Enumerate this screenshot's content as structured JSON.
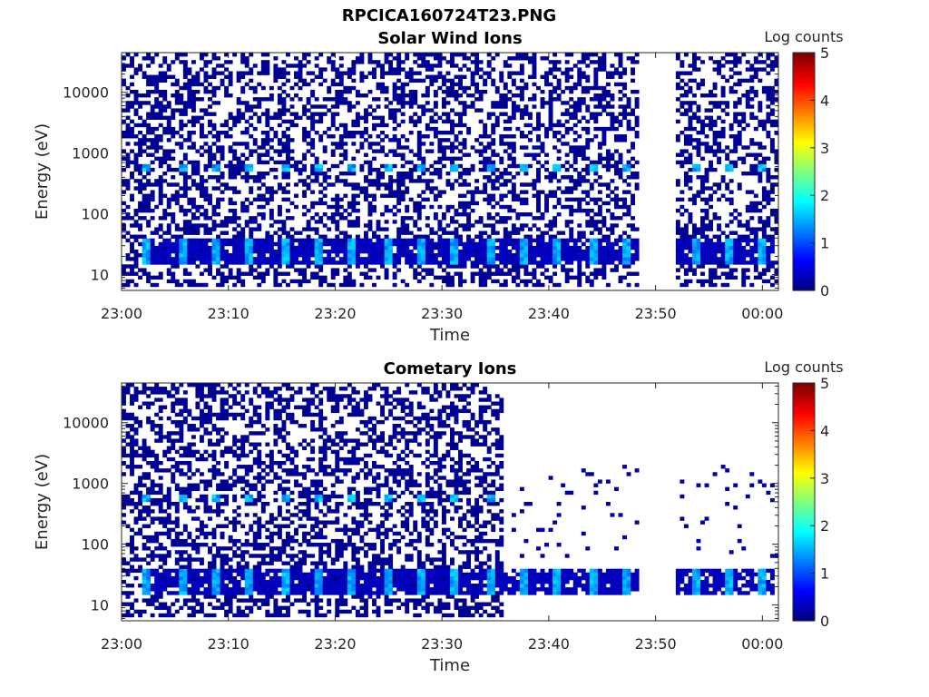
{
  "figure": {
    "title": "RPCICA160724T23.PNG"
  },
  "chart_data": [
    {
      "type": "heatmap",
      "title": "Solar Wind Ions",
      "xlabel": "Time",
      "ylabel": "Energy (eV)",
      "x_ticks": [
        "23:00",
        "23:10",
        "23:20",
        "23:30",
        "23:40",
        "23:50",
        "00:00"
      ],
      "x_range_minutes": [
        0,
        61.5
      ],
      "y_scale": "log",
      "y_ticks": [
        "10",
        "100",
        "1000",
        "10000"
      ],
      "y_range": [
        5.5,
        45000
      ],
      "colorbar": {
        "label": "Log counts",
        "range": [
          0,
          5
        ],
        "ticks": [
          "0",
          "1",
          "2",
          "3",
          "4",
          "5"
        ],
        "colormap": "jet"
      },
      "data_gap_minutes": [
        48.3,
        51.8
      ],
      "recurring_peaks": {
        "period_minutes": 3.2,
        "start_minutes": 2.0,
        "end_minutes": 61.0,
        "low_energy_band_eV": [
          15,
          40
        ],
        "low_energy_peak_log_counts": 1.7,
        "mid_energy_band_eV": [
          500,
          700
        ],
        "mid_energy_peak_log_counts": 1.8
      },
      "background": {
        "noise_energy_eV": [
          6,
          45000
        ],
        "noise_end_minutes": 61.5,
        "noise_log_counts": 0.1
      }
    },
    {
      "type": "heatmap",
      "title": "Cometary Ions",
      "xlabel": "Time",
      "ylabel": "Energy (eV)",
      "x_ticks": [
        "23:00",
        "23:10",
        "23:20",
        "23:30",
        "23:40",
        "23:50",
        "00:00"
      ],
      "x_range_minutes": [
        0,
        61.5
      ],
      "y_scale": "log",
      "y_ticks": [
        "10",
        "100",
        "1000",
        "10000"
      ],
      "y_range": [
        5.5,
        45000
      ],
      "colorbar": {
        "label": "Log counts",
        "range": [
          0,
          5
        ],
        "ticks": [
          "0",
          "1",
          "2",
          "3",
          "4",
          "5"
        ],
        "colormap": "jet"
      },
      "data_gap_minutes": [
        48.3,
        51.8
      ],
      "recurring_peaks": {
        "period_minutes": 3.2,
        "start_minutes": 2.0,
        "end_minutes": 61.0,
        "low_energy_band_eV": [
          15,
          40
        ],
        "low_energy_peak_log_counts": 1.7,
        "mid_energy_band_eV": [
          500,
          700
        ],
        "mid_energy_peak_log_counts": 1.8
      },
      "background": {
        "noise_energy_eV": [
          6,
          45000
        ],
        "noise_end_minutes": 35.7,
        "noise_log_counts": 0.1
      }
    }
  ]
}
